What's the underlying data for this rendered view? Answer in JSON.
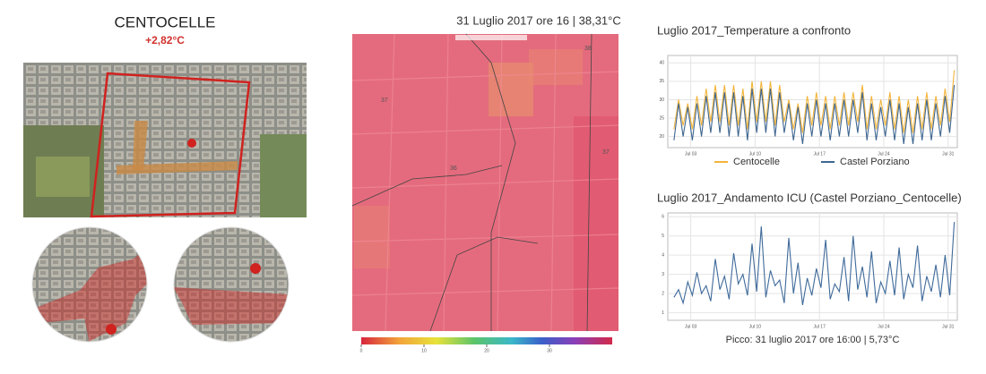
{
  "left": {
    "title": "CENTOCELLE",
    "delta": "+2,82°C"
  },
  "heatmap": {
    "title": "31 Luglio 2017 ore 16 | 38,31°C",
    "labels": [
      "37",
      "38",
      "36",
      "37"
    ],
    "colorbar": {
      "lim": [
        0,
        40
      ],
      "ticks": [
        0,
        10,
        20,
        30
      ]
    }
  },
  "chart_data": [
    {
      "type": "line",
      "title": "Luglio 2017_Temperature a confronto",
      "x": [
        1.17,
        1.67,
        2.17,
        2.67,
        3.17,
        3.67,
        4.17,
        4.67,
        5.17,
        5.67,
        6.17,
        6.67,
        7.17,
        7.67,
        8.17,
        8.67,
        9.17,
        9.67,
        10.17,
        10.67,
        11.17,
        11.67,
        12.17,
        12.67,
        13.17,
        13.67,
        14.17,
        14.67,
        15.17,
        15.67,
        16.17,
        16.67,
        17.17,
        17.67,
        18.17,
        18.67,
        19.17,
        19.67,
        20.17,
        20.67,
        21.17,
        21.67,
        22.17,
        22.67,
        23.17,
        23.67,
        24.17,
        24.67,
        25.17,
        25.67,
        26.17,
        26.67,
        27.17,
        27.67,
        28.17,
        28.67,
        29.17,
        29.67,
        30.17,
        30.67,
        31.17,
        31.67
      ],
      "series": [
        {
          "name": "Centocelle",
          "color": "#f2b53c",
          "values": [
            22,
            30,
            23,
            29,
            22,
            31,
            23,
            33,
            24,
            34,
            24,
            34,
            23,
            34,
            23,
            33,
            22,
            35,
            24,
            35,
            24,
            35,
            23,
            34,
            24,
            30,
            22,
            29,
            21,
            31,
            23,
            32,
            23,
            31,
            22,
            31,
            23,
            32,
            23,
            32,
            24,
            34,
            22,
            31,
            22,
            30,
            23,
            32,
            22,
            31,
            21,
            30,
            21,
            31,
            22,
            32,
            22,
            31,
            23,
            33,
            24,
            38
          ]
        },
        {
          "name": "Castel Porziano",
          "color": "#3f6690",
          "values": [
            19,
            29,
            20,
            28,
            19,
            29,
            20,
            31,
            21,
            32,
            21,
            32,
            20,
            32,
            20,
            31,
            19,
            33,
            21,
            33,
            21,
            33,
            20,
            32,
            21,
            29,
            19,
            28,
            18,
            29,
            20,
            30,
            20,
            29,
            19,
            29,
            20,
            30,
            20,
            30,
            21,
            32,
            19,
            29,
            19,
            28,
            20,
            30,
            19,
            29,
            18,
            28,
            18,
            29,
            19,
            30,
            19,
            29,
            20,
            31,
            21,
            34
          ]
        }
      ],
      "xlim": [
        0.5,
        32
      ],
      "xticks": [
        {
          "value": 3,
          "label": "Jul 03"
        },
        {
          "value": 10,
          "label": "Jul 10"
        },
        {
          "value": 17,
          "label": "Jul 17"
        },
        {
          "value": 24,
          "label": "Jul 24"
        },
        {
          "value": 31,
          "label": "Jul 31"
        }
      ],
      "ylim": [
        17,
        42
      ],
      "yticks": [
        20,
        25,
        30,
        35,
        40
      ],
      "grid": true,
      "legend": "bottom"
    },
    {
      "type": "line",
      "title": "Luglio 2017_Andamento ICU (Castel Porziano_Centocelle)",
      "annotation": "Picco: 31 luglio 2017 ore 16:00 | 5,73°C",
      "x": [
        1.17,
        1.67,
        2.17,
        2.67,
        3.17,
        3.67,
        4.17,
        4.67,
        5.17,
        5.67,
        6.17,
        6.67,
        7.17,
        7.67,
        8.17,
        8.67,
        9.17,
        9.67,
        10.17,
        10.67,
        11.17,
        11.67,
        12.17,
        12.67,
        13.17,
        13.67,
        14.17,
        14.67,
        15.17,
        15.67,
        16.17,
        16.67,
        17.17,
        17.67,
        18.17,
        18.67,
        19.17,
        19.67,
        20.17,
        20.67,
        21.17,
        21.67,
        22.17,
        22.67,
        23.17,
        23.67,
        24.17,
        24.67,
        25.17,
        25.67,
        26.17,
        26.67,
        27.17,
        27.67,
        28.17,
        28.67,
        29.17,
        29.67,
        30.17,
        30.67,
        31.17,
        31.67
      ],
      "color": "#3f6a9a",
      "values": [
        1.8,
        2.2,
        1.5,
        2.6,
        1.9,
        3.1,
        2.0,
        2.4,
        1.6,
        3.8,
        2.2,
        2.9,
        1.7,
        4.1,
        2.5,
        3.0,
        1.9,
        4.6,
        2.1,
        5.5,
        1.8,
        3.2,
        2.4,
        2.7,
        1.5,
        4.9,
        2.0,
        3.6,
        1.4,
        2.8,
        1.9,
        3.3,
        2.3,
        4.8,
        1.7,
        2.5,
        2.1,
        3.9,
        1.6,
        5.0,
        2.2,
        3.4,
        1.8,
        4.2,
        1.5,
        2.6,
        2.0,
        3.7,
        1.9,
        4.4,
        1.7,
        3.0,
        2.3,
        4.5,
        1.6,
        2.9,
        2.1,
        3.5,
        1.8,
        4.0,
        1.9,
        5.73
      ],
      "xlim": [
        0.5,
        32
      ],
      "xticks": [
        {
          "value": 3,
          "label": "Jul 03"
        },
        {
          "value": 10,
          "label": "Jul 10"
        },
        {
          "value": 17,
          "label": "Jul 17"
        },
        {
          "value": 24,
          "label": "Jul 24"
        },
        {
          "value": 31,
          "label": "Jul 31"
        }
      ],
      "ylim": [
        0.6,
        6.2
      ],
      "yticks": [
        1,
        2,
        3,
        4,
        5,
        6
      ],
      "grid": true
    }
  ]
}
